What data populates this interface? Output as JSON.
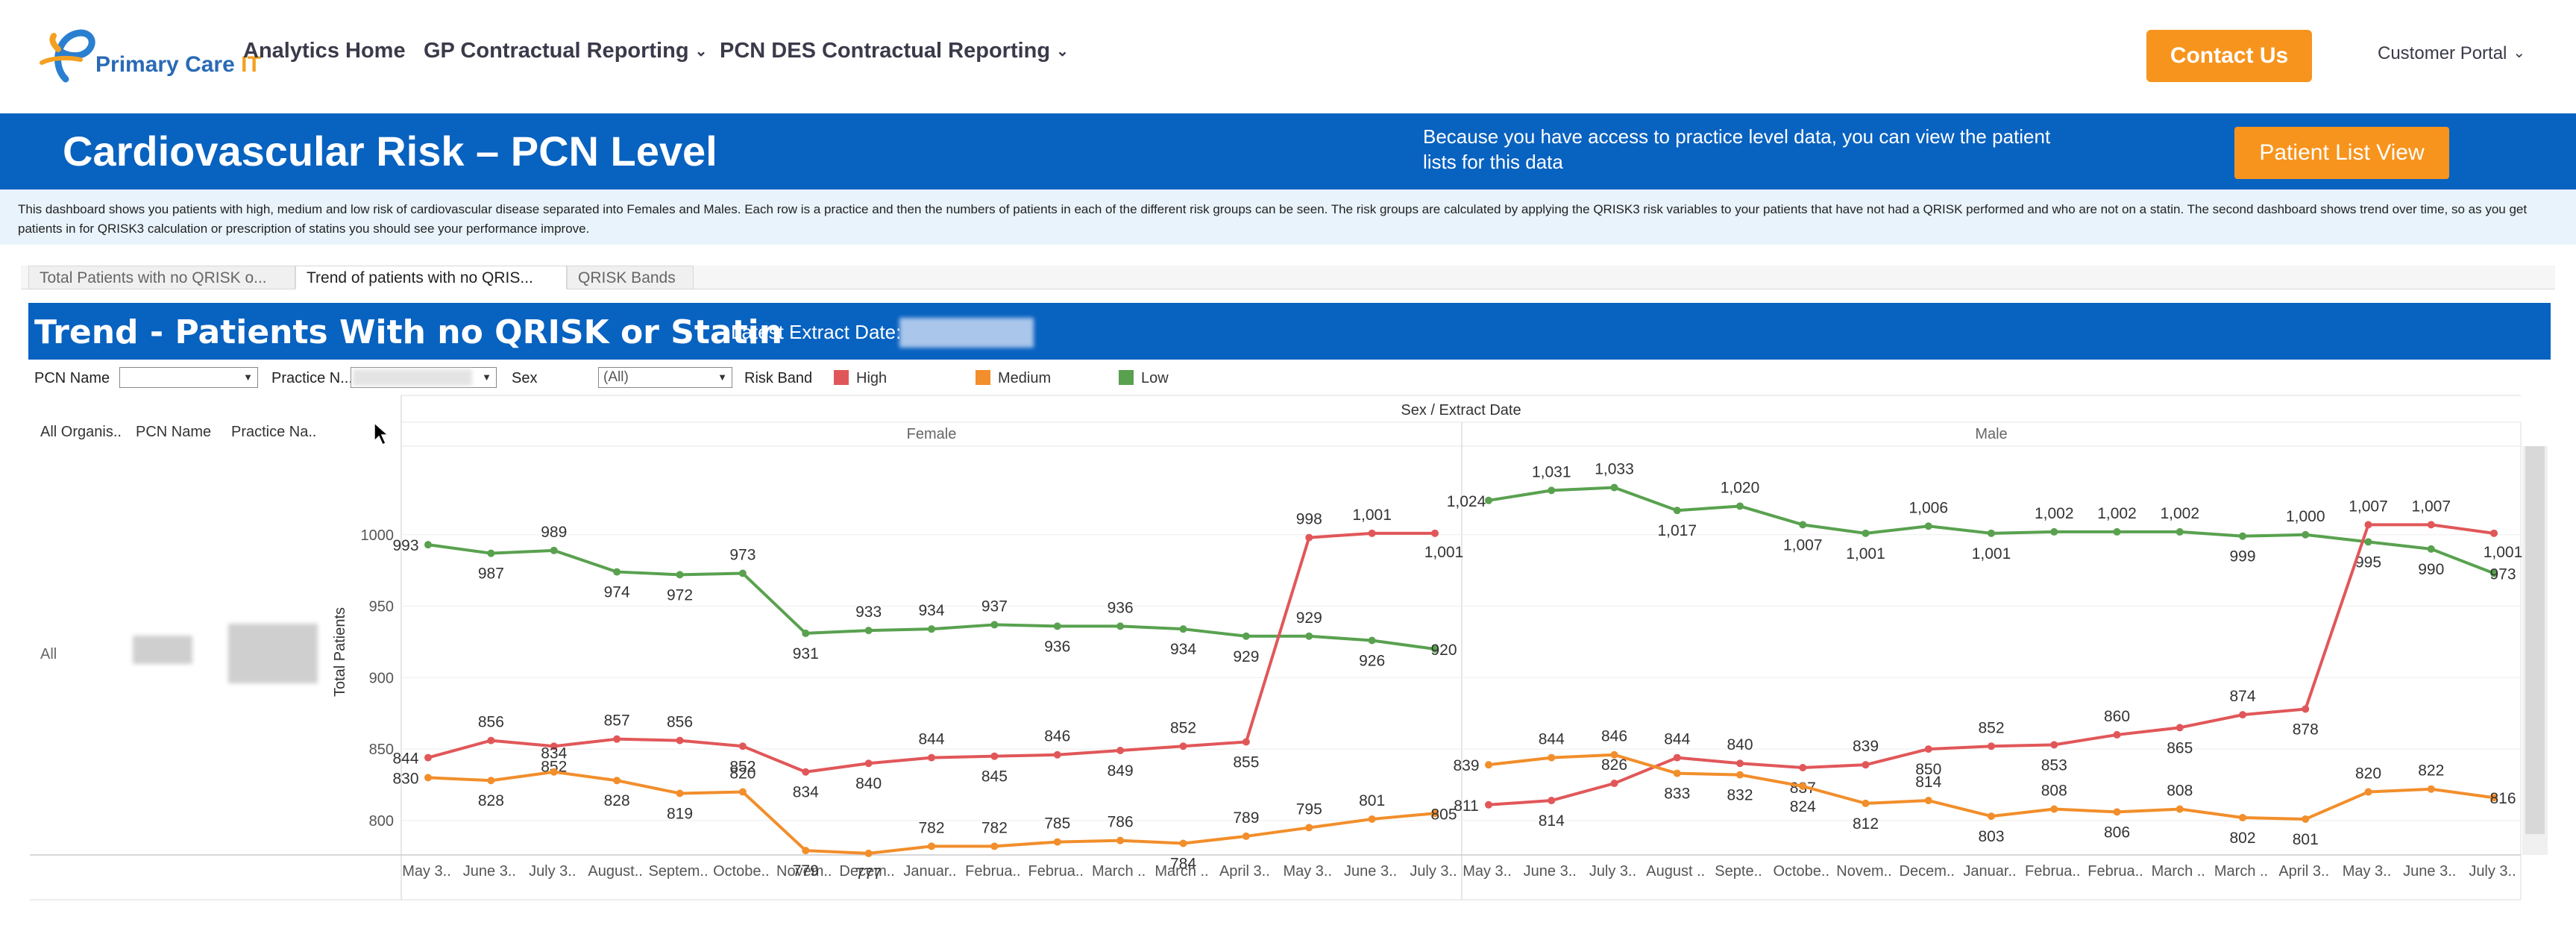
{
  "nav": {
    "logo_text_1": "P",
    "logo_text_2": "rimary Care ",
    "logo_text_3": "IT",
    "home": "Analytics Home",
    "gp": "GP Contractual Reporting",
    "pcn": "PCN DES Contractual Reporting",
    "contact": "Contact Us",
    "portal": "Customer Portal"
  },
  "banner": {
    "title": "Cardiovascular Risk – PCN Level",
    "message": "Because you have access to practice level data, you can view the patient lists for this data",
    "button": "Patient List View"
  },
  "description": "This dashboard shows you patients with high, medium and low risk of cardiovascular disease separated into Females and Males.  Each row is a practice and then the numbers of patients in each of the different risk groups can be seen.  The risk groups are calculated by applying the QRISK3 risk variables to your patients that have not had a QRISK performed and who are not on a statin.  The second dashboard shows trend over time, so as you get patients in for QRISK3 calculation or prescription of statins you should see your performance improve.",
  "tabs": [
    "Total Patients with no QRISK o...",
    "Trend of patients with no QRIS...",
    "QRISK Bands"
  ],
  "dashboard": {
    "title": "Trend - Patients With no QRISK or Statin",
    "extract_label": "Latest Extract Date:"
  },
  "filters": {
    "pcn_label": "PCN Name",
    "practice_label": "Practice N...",
    "sex_label": "Sex",
    "sex_value": "(All)",
    "risk_label": "Risk Band",
    "legend": [
      {
        "name": "High",
        "color": "#e15759"
      },
      {
        "name": "Medium",
        "color": "#f28e2b"
      },
      {
        "name": "Low",
        "color": "#59a14f"
      }
    ]
  },
  "row_headers": {
    "org": "All Organis..",
    "pcn": "PCN Name",
    "practice": "Practice Na..",
    "row_value": "All"
  },
  "chart_data": {
    "type": "line",
    "title": "Sex / Extract Date",
    "ylabel": "Total Patients",
    "ylim": [
      778,
      1062
    ],
    "yticks": [
      800,
      850,
      900,
      950,
      1000
    ],
    "grid": true,
    "panels": [
      {
        "name": "Female",
        "categories": [
          "May 3..",
          "June 3..",
          "July 3..",
          "August..",
          "Septem..",
          "Octobe..",
          "Novem..",
          "Decem..",
          "Januar..",
          "Februa..",
          "Februa..",
          "March ..",
          "March ..",
          "April 3..",
          "May 3..",
          "June 3..",
          "July 3.."
        ],
        "series": [
          {
            "name": "Low",
            "values": [
              993,
              987,
              989,
              974,
              972,
              973,
              931,
              933,
              934,
              937,
              936,
              936,
              934,
              929,
              929,
              926,
              920
            ]
          },
          {
            "name": "High",
            "values": [
              844,
              856,
              852,
              857,
              856,
              852,
              834,
              840,
              844,
              845,
              846,
              849,
              852,
              855,
              998,
              1001,
              1001
            ]
          },
          {
            "name": "Medium",
            "values": [
              830,
              828,
              834,
              828,
              819,
              820,
              779,
              777,
              782,
              782,
              785,
              786,
              784,
              789,
              795,
              801,
              805
            ]
          }
        ]
      },
      {
        "name": "Male",
        "categories": [
          "May 3..",
          "June 3..",
          "July 3..",
          "August ..",
          "Septe..",
          "Octobe..",
          "Novem..",
          "Decem..",
          "Januar..",
          "Februa..",
          "Februa..",
          "March ..",
          "March ..",
          "April 3..",
          "May 3..",
          "June 3..",
          "July 3.."
        ],
        "series": [
          {
            "name": "Low",
            "values": [
              1024,
              1031,
              1033,
              1017,
              1020,
              1007,
              1001,
              1006,
              1001,
              1002,
              1002,
              1002,
              999,
              1000,
              995,
              990,
              973
            ]
          },
          {
            "name": "High",
            "values": [
              811,
              814,
              826,
              844,
              840,
              837,
              839,
              850,
              852,
              853,
              860,
              865,
              874,
              878,
              1007,
              1007,
              1001
            ]
          },
          {
            "name": "Medium",
            "values": [
              839,
              844,
              846,
              833,
              832,
              824,
              812,
              814,
              803,
              808,
              806,
              808,
              802,
              801,
              820,
              822,
              816
            ]
          }
        ]
      }
    ]
  }
}
